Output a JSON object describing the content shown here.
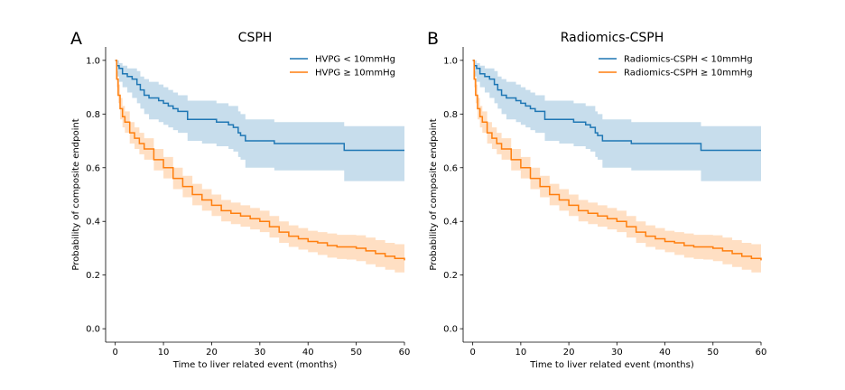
{
  "chart_data": [
    {
      "type": "line",
      "panel_label": "A",
      "title": "CSPH",
      "xlabel": "Time to liver related event (months)",
      "ylabel": "Probability of composite endpoint",
      "xlim": [
        -2,
        60
      ],
      "ylim": [
        -0.05,
        1.05
      ],
      "xticks": [
        "0",
        "10",
        "20",
        "30",
        "40",
        "50",
        "60"
      ],
      "yticks": [
        "0.0",
        "0.2",
        "0.4",
        "0.6",
        "0.8",
        "1.0"
      ],
      "legend_position": "upper-right",
      "grid": false,
      "series": [
        {
          "name": "HVPG < 10mmHg",
          "color": "#1f77b4",
          "x": [
            0,
            0.3,
            0.8,
            1.5,
            2.5,
            3.5,
            4.5,
            5.2,
            6,
            7,
            9,
            10,
            11,
            12,
            13,
            15,
            18,
            21,
            22,
            23.5,
            24.5,
            25.5,
            26,
            27,
            30,
            33,
            40,
            47.5,
            60
          ],
          "y": [
            1.0,
            0.98,
            0.97,
            0.95,
            0.94,
            0.93,
            0.91,
            0.89,
            0.87,
            0.86,
            0.85,
            0.84,
            0.83,
            0.82,
            0.81,
            0.78,
            0.78,
            0.77,
            0.77,
            0.76,
            0.75,
            0.73,
            0.72,
            0.7,
            0.7,
            0.69,
            0.69,
            0.665,
            0.665
          ],
          "ci_lower": [
            1.0,
            0.94,
            0.92,
            0.9,
            0.88,
            0.86,
            0.84,
            0.82,
            0.8,
            0.78,
            0.77,
            0.76,
            0.75,
            0.74,
            0.73,
            0.7,
            0.69,
            0.68,
            0.68,
            0.67,
            0.66,
            0.64,
            0.63,
            0.6,
            0.6,
            0.59,
            0.59,
            0.55,
            0.55
          ],
          "ci_upper": [
            1.0,
            1.0,
            0.99,
            0.98,
            0.97,
            0.97,
            0.96,
            0.94,
            0.93,
            0.92,
            0.91,
            0.9,
            0.89,
            0.88,
            0.87,
            0.85,
            0.85,
            0.84,
            0.84,
            0.83,
            0.83,
            0.81,
            0.8,
            0.78,
            0.78,
            0.77,
            0.77,
            0.755,
            0.755
          ]
        },
        {
          "name": "HVPG ≥ 10mmHg",
          "color": "#ff7f0e",
          "x": [
            0,
            0.3,
            0.6,
            1,
            1.5,
            2,
            3,
            4,
            5,
            6,
            8,
            10,
            12,
            14,
            16,
            18,
            20,
            22,
            24,
            26,
            28,
            30,
            32,
            34,
            36,
            38,
            40,
            42,
            44,
            46,
            48,
            50,
            52,
            54,
            56,
            58,
            60
          ],
          "y": [
            1.0,
            0.93,
            0.87,
            0.82,
            0.79,
            0.77,
            0.73,
            0.71,
            0.69,
            0.67,
            0.63,
            0.6,
            0.56,
            0.53,
            0.5,
            0.48,
            0.46,
            0.44,
            0.43,
            0.42,
            0.41,
            0.4,
            0.38,
            0.36,
            0.345,
            0.335,
            0.325,
            0.32,
            0.31,
            0.305,
            0.305,
            0.3,
            0.29,
            0.28,
            0.27,
            0.262,
            0.255
          ],
          "ci_lower": [
            1.0,
            0.9,
            0.84,
            0.78,
            0.75,
            0.73,
            0.69,
            0.67,
            0.65,
            0.63,
            0.59,
            0.56,
            0.52,
            0.49,
            0.46,
            0.44,
            0.42,
            0.4,
            0.39,
            0.38,
            0.37,
            0.36,
            0.34,
            0.32,
            0.305,
            0.295,
            0.285,
            0.275,
            0.265,
            0.26,
            0.258,
            0.252,
            0.24,
            0.23,
            0.22,
            0.21,
            0.2
          ],
          "ci_upper": [
            1.0,
            0.96,
            0.91,
            0.86,
            0.83,
            0.81,
            0.77,
            0.75,
            0.73,
            0.71,
            0.67,
            0.64,
            0.6,
            0.57,
            0.54,
            0.52,
            0.5,
            0.48,
            0.47,
            0.46,
            0.45,
            0.44,
            0.42,
            0.4,
            0.385,
            0.375,
            0.365,
            0.36,
            0.355,
            0.35,
            0.35,
            0.348,
            0.34,
            0.33,
            0.32,
            0.315,
            0.31
          ]
        }
      ]
    },
    {
      "type": "line",
      "panel_label": "B",
      "title": "Radiomics-CSPH",
      "xlabel": "Time to liver related event (months)",
      "ylabel": "Probability of composite endpoint",
      "xlim": [
        -2,
        60
      ],
      "ylim": [
        -0.05,
        1.05
      ],
      "xticks": [
        "0",
        "10",
        "20",
        "30",
        "40",
        "50",
        "60"
      ],
      "yticks": [
        "0.0",
        "0.2",
        "0.4",
        "0.6",
        "0.8",
        "1.0"
      ],
      "legend_position": "upper-right",
      "grid": false,
      "series": [
        {
          "name": "Radiomics-CSPH < 10mmHg",
          "color": "#1f77b4",
          "x": [
            0,
            0.3,
            0.8,
            1.5,
            2.5,
            3.5,
            4.5,
            5.2,
            6,
            7,
            9,
            10,
            11,
            12,
            13,
            15,
            18,
            21,
            22,
            23.5,
            24.5,
            25.5,
            26,
            27,
            30,
            33,
            40,
            47.5,
            60
          ],
          "y": [
            1.0,
            0.98,
            0.97,
            0.95,
            0.94,
            0.93,
            0.91,
            0.89,
            0.87,
            0.86,
            0.85,
            0.84,
            0.83,
            0.82,
            0.81,
            0.78,
            0.78,
            0.77,
            0.77,
            0.76,
            0.75,
            0.73,
            0.72,
            0.7,
            0.7,
            0.69,
            0.69,
            0.665,
            0.665
          ],
          "ci_lower": [
            1.0,
            0.94,
            0.92,
            0.9,
            0.88,
            0.86,
            0.84,
            0.82,
            0.8,
            0.78,
            0.77,
            0.76,
            0.75,
            0.74,
            0.73,
            0.7,
            0.69,
            0.68,
            0.68,
            0.67,
            0.66,
            0.64,
            0.63,
            0.6,
            0.6,
            0.59,
            0.59,
            0.55,
            0.55
          ],
          "ci_upper": [
            1.0,
            1.0,
            0.99,
            0.98,
            0.97,
            0.97,
            0.96,
            0.94,
            0.93,
            0.92,
            0.91,
            0.9,
            0.89,
            0.88,
            0.87,
            0.85,
            0.85,
            0.84,
            0.84,
            0.83,
            0.83,
            0.81,
            0.8,
            0.78,
            0.78,
            0.77,
            0.77,
            0.755,
            0.755
          ]
        },
        {
          "name": "Radiomics-CSPH ≥ 10mmHg",
          "color": "#ff7f0e",
          "x": [
            0,
            0.3,
            0.6,
            1,
            1.5,
            2,
            3,
            4,
            5,
            6,
            8,
            10,
            12,
            14,
            16,
            18,
            20,
            22,
            24,
            26,
            28,
            30,
            32,
            34,
            36,
            38,
            40,
            42,
            44,
            46,
            48,
            50,
            52,
            54,
            56,
            58,
            60
          ],
          "y": [
            1.0,
            0.93,
            0.87,
            0.82,
            0.79,
            0.77,
            0.73,
            0.71,
            0.69,
            0.67,
            0.63,
            0.6,
            0.56,
            0.53,
            0.5,
            0.48,
            0.46,
            0.44,
            0.43,
            0.42,
            0.41,
            0.4,
            0.38,
            0.36,
            0.345,
            0.335,
            0.325,
            0.32,
            0.31,
            0.305,
            0.305,
            0.3,
            0.29,
            0.28,
            0.27,
            0.262,
            0.255
          ],
          "ci_lower": [
            1.0,
            0.9,
            0.84,
            0.78,
            0.75,
            0.73,
            0.69,
            0.67,
            0.65,
            0.63,
            0.59,
            0.56,
            0.52,
            0.49,
            0.46,
            0.44,
            0.42,
            0.4,
            0.39,
            0.38,
            0.37,
            0.36,
            0.34,
            0.32,
            0.305,
            0.295,
            0.285,
            0.275,
            0.265,
            0.26,
            0.258,
            0.252,
            0.24,
            0.23,
            0.22,
            0.21,
            0.2
          ],
          "ci_upper": [
            1.0,
            0.96,
            0.91,
            0.86,
            0.83,
            0.81,
            0.77,
            0.75,
            0.73,
            0.71,
            0.67,
            0.64,
            0.6,
            0.57,
            0.54,
            0.52,
            0.5,
            0.48,
            0.47,
            0.46,
            0.45,
            0.44,
            0.42,
            0.4,
            0.385,
            0.375,
            0.365,
            0.36,
            0.355,
            0.35,
            0.35,
            0.348,
            0.34,
            0.33,
            0.32,
            0.315,
            0.31
          ]
        }
      ]
    }
  ]
}
